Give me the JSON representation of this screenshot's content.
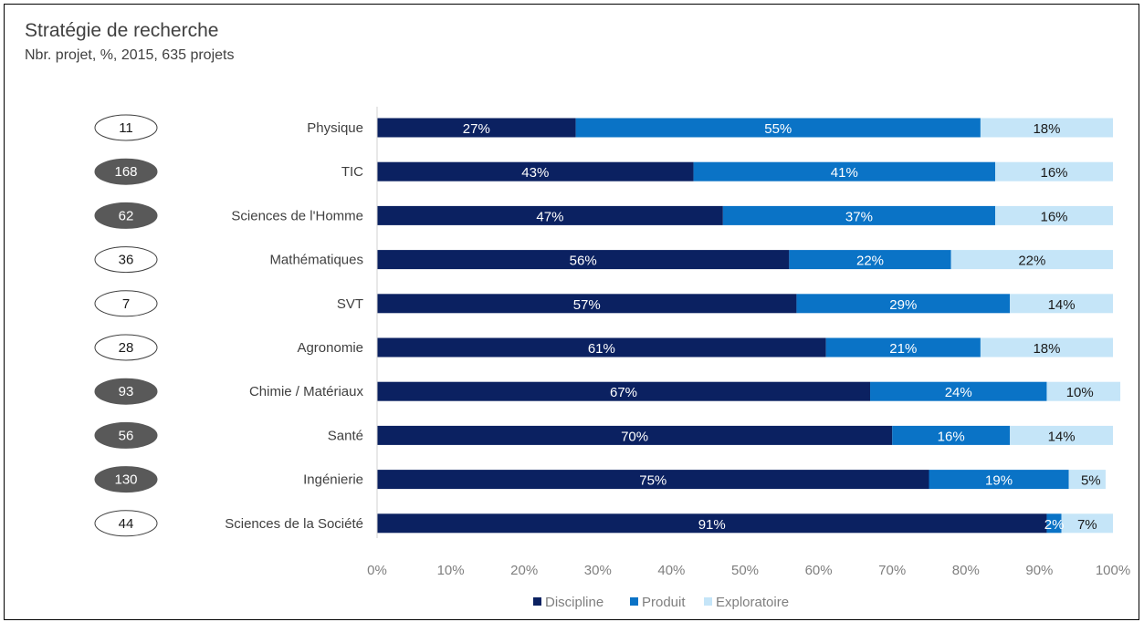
{
  "header": {
    "title": "Stratégie de recherche",
    "subtitle": "Nbr. projet, %, 2015, 635 projets"
  },
  "colors": {
    "discipline": "#0b2161",
    "produit": "#0a73c6",
    "exploratoire": "#c5e5f8",
    "badge_dark": "#595959",
    "text": "#404040",
    "axis": "#7f7f7f"
  },
  "chart_data": {
    "type": "bar",
    "orientation": "horizontal",
    "stacked": true,
    "categories": [
      "Physique",
      "TIC",
      "Sciences de l'Homme",
      "Mathématiques",
      "SVT",
      "Agronomie",
      "Chimie / Matériaux",
      "Santé",
      "Ingénierie",
      "Sciences de la Société"
    ],
    "series": [
      {
        "name": "Discipline",
        "values": [
          27,
          43,
          47,
          56,
          57,
          61,
          67,
          70,
          75,
          91
        ]
      },
      {
        "name": "Produit",
        "values": [
          55,
          41,
          37,
          22,
          29,
          21,
          24,
          16,
          19,
          2
        ]
      },
      {
        "name": "Exploratoire",
        "values": [
          18,
          16,
          16,
          22,
          14,
          18,
          10,
          14,
          5,
          7
        ]
      }
    ],
    "data_labels": {
      "Discipline": [
        "27%",
        "43%",
        "47%",
        "56%",
        "57%",
        "61%",
        "67%",
        "70%",
        "75%",
        "91%"
      ],
      "Produit": [
        "55%",
        "41%",
        "37%",
        "22%",
        "29%",
        "21%",
        "24%",
        "16%",
        "19%",
        "2%"
      ],
      "Exploratoire": [
        "18%",
        "16%",
        "16%",
        "22%",
        "14%",
        "18%",
        "10%",
        "14%",
        "5%",
        "7%"
      ]
    },
    "project_counts": [
      11,
      168,
      62,
      36,
      7,
      28,
      93,
      56,
      130,
      44
    ],
    "project_count_highlight": [
      false,
      true,
      true,
      false,
      false,
      false,
      true,
      true,
      true,
      false
    ],
    "x_ticks": [
      "0%",
      "10%",
      "20%",
      "30%",
      "40%",
      "50%",
      "60%",
      "70%",
      "80%",
      "90%",
      "100%"
    ],
    "xlim": [
      0,
      100
    ],
    "grid": false,
    "legend_position": "bottom",
    "title": "Stratégie de recherche",
    "subtitle": "Nbr. projet, %, 2015, 635 projets",
    "xlabel": "",
    "ylabel": ""
  }
}
